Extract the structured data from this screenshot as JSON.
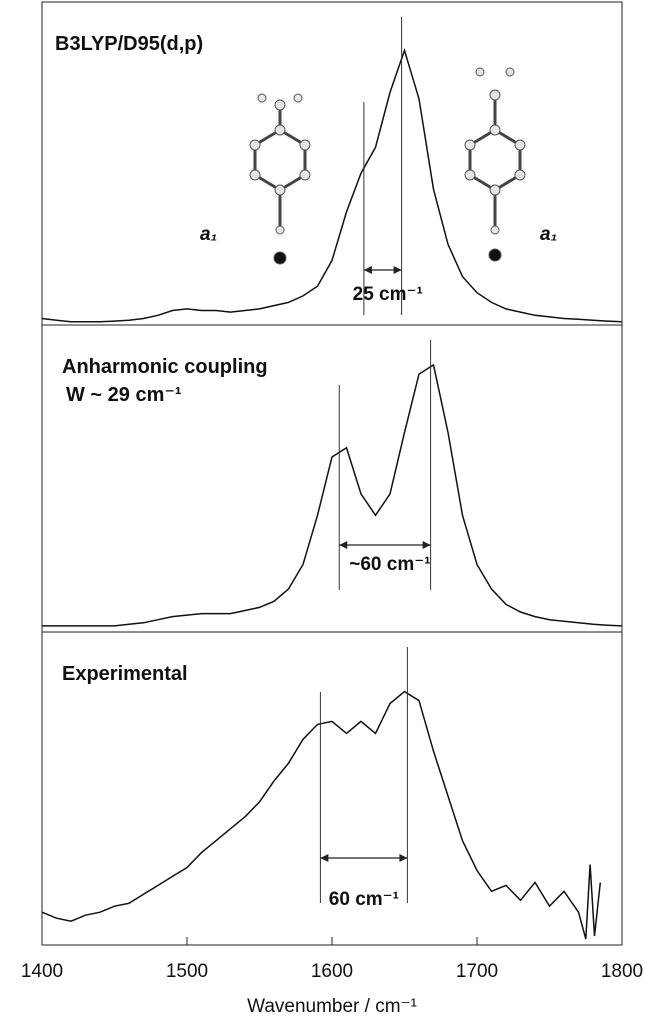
{
  "chart_data": [
    {
      "type": "line",
      "title": "B3LYP/D95(d,p)",
      "color": "#111111",
      "x": [
        1400,
        1410,
        1420,
        1430,
        1440,
        1450,
        1460,
        1470,
        1480,
        1490,
        1500,
        1510,
        1520,
        1530,
        1540,
        1550,
        1560,
        1570,
        1580,
        1590,
        1600,
        1610,
        1620,
        1630,
        1640,
        1650,
        1660,
        1670,
        1680,
        1690,
        1700,
        1710,
        1720,
        1730,
        1740,
        1750,
        1760,
        1770,
        1780,
        1790,
        1800
      ],
      "values": [
        0.02,
        0.015,
        0.01,
        0.01,
        0.01,
        0.012,
        0.015,
        0.02,
        0.03,
        0.045,
        0.05,
        0.045,
        0.045,
        0.04,
        0.045,
        0.05,
        0.06,
        0.07,
        0.09,
        0.12,
        0.2,
        0.35,
        0.47,
        0.55,
        0.72,
        0.85,
        0.7,
        0.42,
        0.25,
        0.15,
        0.1,
        0.07,
        0.05,
        0.04,
        0.03,
        0.025,
        0.02,
        0.018,
        0.015,
        0.012,
        0.01
      ],
      "ylim": [
        0,
        1
      ],
      "markers": [
        1622,
        1648
      ],
      "annotation": "25 cm⁻¹",
      "mode_labels": [
        "a₁",
        "a₁"
      ]
    },
    {
      "type": "line",
      "title": "Anharmonic coupling",
      "subtitle": "W ~ 29 cm⁻¹",
      "color": "#111111",
      "x": [
        1400,
        1410,
        1420,
        1430,
        1440,
        1450,
        1460,
        1470,
        1480,
        1490,
        1500,
        1510,
        1520,
        1530,
        1540,
        1550,
        1560,
        1570,
        1580,
        1590,
        1600,
        1610,
        1620,
        1630,
        1640,
        1650,
        1660,
        1670,
        1680,
        1690,
        1700,
        1710,
        1720,
        1730,
        1740,
        1750,
        1760,
        1770,
        1780,
        1790,
        1800
      ],
      "values": [
        0.02,
        0.02,
        0.02,
        0.02,
        0.02,
        0.02,
        0.025,
        0.03,
        0.04,
        0.05,
        0.055,
        0.06,
        0.06,
        0.06,
        0.07,
        0.08,
        0.1,
        0.14,
        0.22,
        0.38,
        0.57,
        0.6,
        0.45,
        0.38,
        0.45,
        0.65,
        0.84,
        0.87,
        0.65,
        0.38,
        0.22,
        0.14,
        0.09,
        0.065,
        0.05,
        0.04,
        0.035,
        0.03,
        0.025,
        0.022,
        0.02
      ],
      "ylim": [
        0,
        1
      ],
      "markers": [
        1605,
        1668
      ],
      "annotation": "~60 cm⁻¹"
    },
    {
      "type": "line",
      "title": "Experimental",
      "color": "#111111",
      "x": [
        1400,
        1410,
        1420,
        1430,
        1440,
        1450,
        1460,
        1470,
        1480,
        1490,
        1500,
        1510,
        1520,
        1530,
        1540,
        1550,
        1560,
        1570,
        1580,
        1590,
        1600,
        1610,
        1620,
        1630,
        1640,
        1650,
        1660,
        1670,
        1680,
        1690,
        1700,
        1710,
        1720,
        1730,
        1740,
        1750,
        1760,
        1770,
        1775,
        1778,
        1781,
        1785
      ],
      "values": [
        0.06,
        0.04,
        0.03,
        0.05,
        0.06,
        0.08,
        0.09,
        0.12,
        0.15,
        0.18,
        0.21,
        0.26,
        0.3,
        0.34,
        0.38,
        0.43,
        0.5,
        0.56,
        0.64,
        0.69,
        0.7,
        0.66,
        0.7,
        0.66,
        0.76,
        0.8,
        0.77,
        0.6,
        0.45,
        0.3,
        0.2,
        0.13,
        0.15,
        0.1,
        0.16,
        0.08,
        0.13,
        0.06,
        -0.03,
        0.22,
        -0.02,
        0.16
      ],
      "ylim": [
        -0.05,
        1
      ],
      "markers": [
        1592,
        1652
      ],
      "annotation": "60 cm⁻¹",
      "xlim": [
        1400,
        1800
      ],
      "xticks": [
        1400,
        1500,
        1600,
        1700,
        1800
      ],
      "xlabel": "Wavenumber / cm⁻¹"
    }
  ]
}
